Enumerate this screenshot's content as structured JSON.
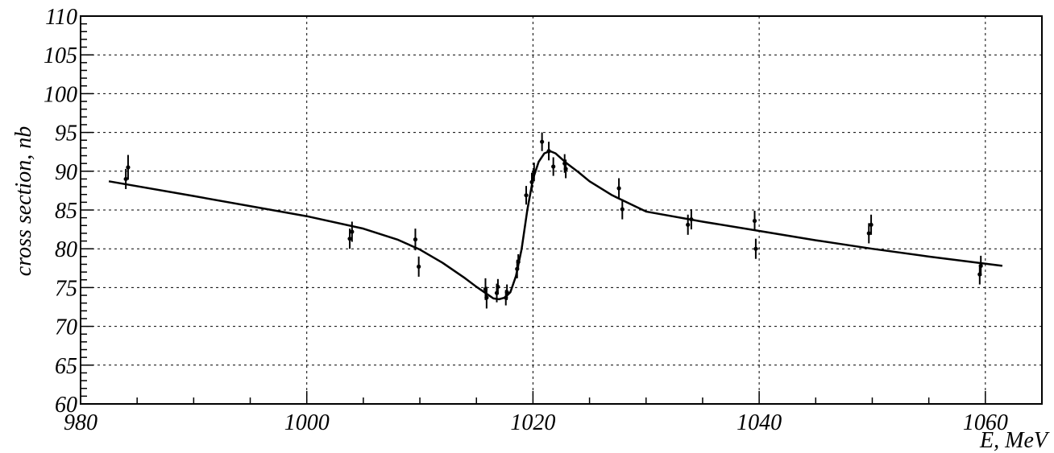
{
  "chart_data": {
    "type": "scatter",
    "title": "",
    "xlabel": "E, MeV",
    "ylabel": "cross section, nb",
    "xlim": [
      980,
      1065
    ],
    "ylim": [
      60,
      110
    ],
    "grid": true,
    "x_ticks": [
      980,
      1000,
      1020,
      1040,
      1060
    ],
    "x_tick_labels": [
      "980",
      "1000",
      "1020",
      "1040",
      "1060"
    ],
    "y_ticks": [
      60,
      65,
      70,
      75,
      80,
      85,
      90,
      95,
      100,
      105,
      110
    ],
    "y_tick_labels": [
      "60",
      "65",
      "70",
      "75",
      "80",
      "85",
      "90",
      "95",
      "100",
      "105",
      "110"
    ],
    "series": [
      {
        "kind": "points_with_errors",
        "points": [
          {
            "x": 984.0,
            "y": 89.0,
            "err": 1.3
          },
          {
            "x": 984.2,
            "y": 90.5,
            "err": 1.6
          },
          {
            "x": 1003.8,
            "y": 81.3,
            "err": 1.3
          },
          {
            "x": 1004.0,
            "y": 82.2,
            "err": 1.3
          },
          {
            "x": 1009.6,
            "y": 81.2,
            "err": 1.4
          },
          {
            "x": 1009.9,
            "y": 77.7,
            "err": 1.3
          },
          {
            "x": 1015.8,
            "y": 74.8,
            "err": 1.4
          },
          {
            "x": 1015.9,
            "y": 73.7,
            "err": 1.4
          },
          {
            "x": 1016.8,
            "y": 74.3,
            "err": 1.2
          },
          {
            "x": 1016.9,
            "y": 75.1,
            "err": 1.0
          },
          {
            "x": 1017.6,
            "y": 73.7,
            "err": 1.0
          },
          {
            "x": 1017.7,
            "y": 74.4,
            "err": 1.0
          },
          {
            "x": 1018.6,
            "y": 77.4,
            "err": 1.2
          },
          {
            "x": 1018.7,
            "y": 78.3,
            "err": 1.0
          },
          {
            "x": 1019.4,
            "y": 86.9,
            "err": 1.2
          },
          {
            "x": 1019.9,
            "y": 88.6,
            "err": 1.2
          },
          {
            "x": 1020.1,
            "y": 89.9,
            "err": 1.2
          },
          {
            "x": 1020.8,
            "y": 93.8,
            "err": 1.2
          },
          {
            "x": 1021.4,
            "y": 92.6,
            "err": 1.2
          },
          {
            "x": 1021.8,
            "y": 90.6,
            "err": 1.2
          },
          {
            "x": 1022.8,
            "y": 91.0,
            "err": 1.2
          },
          {
            "x": 1022.9,
            "y": 90.3,
            "err": 1.2
          },
          {
            "x": 1027.6,
            "y": 87.8,
            "err": 1.3
          },
          {
            "x": 1027.9,
            "y": 85.1,
            "err": 1.3
          },
          {
            "x": 1033.7,
            "y": 83.1,
            "err": 1.3
          },
          {
            "x": 1034.0,
            "y": 83.8,
            "err": 1.3
          },
          {
            "x": 1039.6,
            "y": 83.6,
            "err": 1.3
          },
          {
            "x": 1039.7,
            "y": 80.0,
            "err": 1.3
          },
          {
            "x": 1049.7,
            "y": 82.0,
            "err": 1.3
          },
          {
            "x": 1049.9,
            "y": 83.1,
            "err": 1.3
          },
          {
            "x": 1059.5,
            "y": 76.7,
            "err": 1.3
          },
          {
            "x": 1059.6,
            "y": 77.8,
            "err": 1.3
          }
        ]
      },
      {
        "kind": "fit_curve",
        "x": [
          982.5,
          990,
          1000,
          1005,
          1008,
          1010,
          1012,
          1014,
          1015,
          1016,
          1016.5,
          1017,
          1017.5,
          1018,
          1018.5,
          1019,
          1019.5,
          1020,
          1020.5,
          1021,
          1021.5,
          1022,
          1023,
          1024,
          1025,
          1027,
          1030,
          1035,
          1040,
          1045,
          1050,
          1055,
          1061.5
        ],
        "y": [
          88.7,
          86.8,
          84.2,
          82.6,
          81.2,
          79.9,
          78.2,
          76.2,
          75.1,
          74.1,
          73.6,
          73.5,
          73.7,
          74.4,
          76.5,
          80.0,
          85.0,
          89.0,
          91.2,
          92.3,
          92.6,
          92.3,
          91.0,
          89.9,
          88.7,
          86.9,
          84.8,
          83.5,
          82.3,
          81.1,
          80.0,
          79.0,
          77.8
        ]
      }
    ]
  }
}
